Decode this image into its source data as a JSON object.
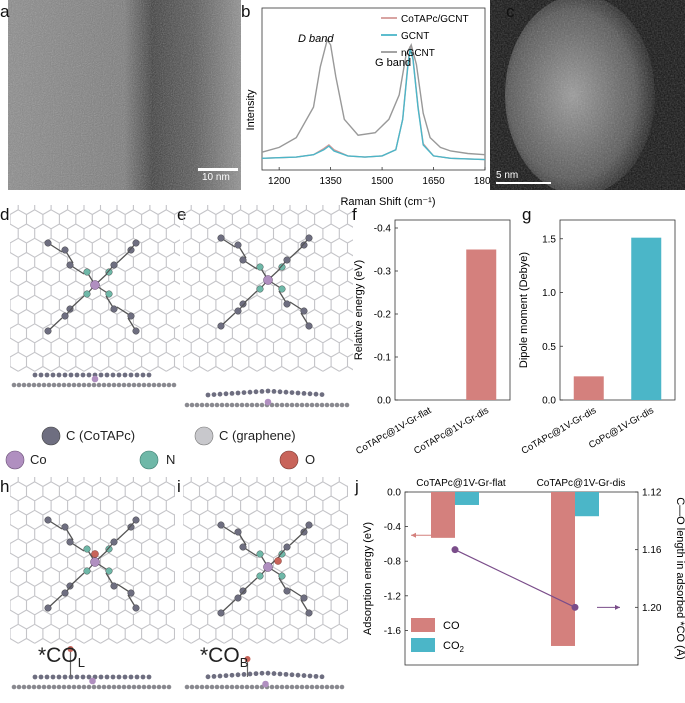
{
  "panels": {
    "a": {
      "label": "a",
      "scale_bar": "10 nm"
    },
    "b": {
      "label": "b"
    },
    "c": {
      "label": "c",
      "scale_bar": "5 nm"
    },
    "d": {
      "label": "d"
    },
    "e": {
      "label": "e"
    },
    "f": {
      "label": "f"
    },
    "g": {
      "label": "g"
    },
    "h": {
      "label": "h",
      "species_main": "*CO",
      "species_sub": "L"
    },
    "i": {
      "label": "i",
      "species_main": "*CO",
      "species_sub": "B"
    },
    "j": {
      "label": "j"
    }
  },
  "atom_legend": {
    "c_cotapc": "C (CoTAPc)",
    "c_graphene": "C (graphene)",
    "co": "Co",
    "n": "N",
    "o": "O",
    "colors": {
      "c_cotapc": "#6e6e80",
      "c_graphene": "#c8c8cc",
      "co": "#b08fc0",
      "n": "#6fb8a8",
      "o": "#c8645a"
    }
  },
  "chart_data": [
    {
      "panel": "b",
      "type": "line",
      "xlabel": "Raman Shift (cm⁻¹)",
      "ylabel": "Intensity",
      "xlim": [
        1150,
        1800
      ],
      "xticks": [
        1200,
        1350,
        1500,
        1650,
        1800
      ],
      "annotations": [
        "D band",
        "G band"
      ],
      "legend_position": "top-right",
      "series": [
        {
          "name": "CoTAPc/GCNT",
          "color": "#d49a98",
          "x": [
            1150,
            1250,
            1300,
            1330,
            1345,
            1360,
            1400,
            1450,
            1500,
            1540,
            1560,
            1575,
            1582,
            1590,
            1605,
            1620,
            1650,
            1700,
            1800
          ],
          "y": [
            0.03,
            0.04,
            0.06,
            0.11,
            0.14,
            0.1,
            0.05,
            0.04,
            0.05,
            0.1,
            0.35,
            0.8,
            0.95,
            0.85,
            0.45,
            0.15,
            0.05,
            0.03,
            0.02
          ]
        },
        {
          "name": "GCNT",
          "color": "#4bb6c8",
          "x": [
            1150,
            1250,
            1300,
            1330,
            1345,
            1360,
            1400,
            1450,
            1500,
            1540,
            1560,
            1575,
            1582,
            1590,
            1605,
            1620,
            1650,
            1700,
            1800
          ],
          "y": [
            0.03,
            0.04,
            0.06,
            0.1,
            0.13,
            0.09,
            0.05,
            0.04,
            0.05,
            0.1,
            0.35,
            0.78,
            0.93,
            0.84,
            0.44,
            0.14,
            0.05,
            0.03,
            0.02
          ]
        },
        {
          "name": "nGCNT",
          "color": "#999999",
          "x": [
            1150,
            1200,
            1250,
            1300,
            1320,
            1340,
            1350,
            1365,
            1390,
            1430,
            1480,
            1520,
            1550,
            1570,
            1585,
            1600,
            1620,
            1640,
            1670,
            1700,
            1750,
            1800
          ],
          "y": [
            0.08,
            0.12,
            0.2,
            0.45,
            0.78,
            1.0,
            0.96,
            0.7,
            0.35,
            0.22,
            0.24,
            0.35,
            0.55,
            0.88,
            0.96,
            0.8,
            0.4,
            0.2,
            0.12,
            0.09,
            0.07,
            0.06
          ]
        }
      ]
    },
    {
      "panel": "f",
      "type": "bar",
      "ylabel": "Relative energy (eV)",
      "categories": [
        "CoTAPc@1V-Gr-flat",
        "CoTAPc@1V-Gr-dis"
      ],
      "values": [
        0.0,
        -0.35
      ],
      "ylim": [
        0,
        -0.4
      ],
      "yticks": [
        "0.0",
        "-0.1",
        "-0.2",
        "-0.3",
        "-0.4"
      ],
      "colors": [
        "#d4807d",
        "#d4807d"
      ]
    },
    {
      "panel": "g",
      "type": "bar",
      "ylabel": "Dipole moment (Debye)",
      "categories": [
        "CoTAPc@1V-Gr-dis",
        "CoPc@1V-Gr-dis"
      ],
      "values": [
        0.22,
        1.51
      ],
      "ylim": [
        0,
        1.6
      ],
      "yticks": [
        "0.0",
        "0.5",
        "1.0",
        "1.5"
      ],
      "colors": [
        "#d4807d",
        "#4bb6c8"
      ]
    },
    {
      "panel": "j",
      "type": "bar",
      "ylabel": "Adsorption energy (eV)",
      "y2label": "C—O length in adsorbed *CO (Å)",
      "categories": [
        "CoTAPc@1V-Gr-flat",
        "CoTAPc@1V-Gr-dis"
      ],
      "ylim": [
        0,
        -2.0
      ],
      "yticks": [
        "0.0",
        "-0.4",
        "-0.8",
        "-1.2",
        "-1.6"
      ],
      "y2lim": [
        1.12,
        1.24
      ],
      "y2ticks": [
        "1.12",
        "1.16",
        "1.20"
      ],
      "series": [
        {
          "name": "CO",
          "color": "#d4807d",
          "values": [
            -0.53,
            -1.78
          ]
        },
        {
          "name": "CO₂",
          "name_main": "CO",
          "name_sub": "2",
          "color": "#4bb6c8",
          "values": [
            -0.15,
            -0.28
          ]
        }
      ],
      "line_series": {
        "color": "#7a4d8a",
        "values": [
          1.16,
          1.2
        ]
      },
      "legend_position": "bottom-left"
    }
  ]
}
